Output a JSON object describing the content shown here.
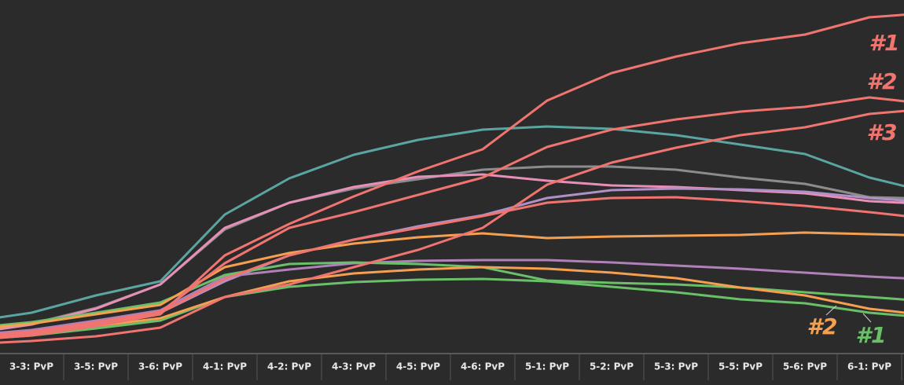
{
  "chart_data": {
    "type": "line",
    "categories": [
      null,
      "3-3: PvP",
      "3-5: PvP",
      "3-6: PvP",
      "4-1: PvP",
      "4-2: PvP",
      "4-3: PvP",
      "4-5: PvP",
      "4-6: PvP",
      "5-1: PvP",
      "5-2: PvP",
      "5-3: PvP",
      "5-5: PvP",
      "5-6: PvP",
      "6-1: PvP",
      null
    ],
    "ylim": [
      0,
      450
    ],
    "series": [
      {
        "color": "#8c8c8c",
        "values": [
          26,
          38,
          58,
          88,
          158,
          192,
          210,
          222,
          234,
          238,
          238,
          234,
          224,
          216,
          199,
          197
        ]
      },
      {
        "color": "#e88fb8",
        "values": [
          25,
          37,
          57,
          88,
          160,
          192,
          212,
          225,
          228,
          220,
          214,
          212,
          208,
          204,
          194,
          190
        ]
      },
      {
        "color": "#b090c8",
        "values": [
          18,
          26,
          38,
          52,
          92,
          125,
          145,
          162,
          176,
          198,
          208,
          210,
          209,
          206,
          198,
          192
        ]
      },
      {
        "color": "#b080b8",
        "values": [
          23,
          30,
          42,
          55,
          98,
          107,
          115,
          118,
          119,
          119,
          116,
          112,
          108,
          103,
          98,
          94
        ]
      },
      {
        "color": "#6abf69",
        "values": [
          32,
          40,
          52,
          65,
          100,
          114,
          116,
          114,
          110,
          93,
          90,
          88,
          84,
          78,
          72,
          66
        ]
      },
      {
        "color": "#6abf69",
        "values": [
          17,
          23,
          32,
          42,
          72,
          85,
          91,
          94,
          95,
          92,
          85,
          78,
          69,
          64,
          52,
          45
        ]
      },
      {
        "color": "#f5a050",
        "values": [
          30,
          38,
          50,
          62,
          110,
          128,
          140,
          148,
          153,
          147,
          149,
          150,
          151,
          154,
          152,
          150
        ]
      },
      {
        "color": "#f5a050",
        "values": [
          20,
          26,
          35,
          45,
          72,
          92,
          102,
          107,
          110,
          108,
          103,
          96,
          84,
          74,
          57,
          48
        ]
      },
      {
        "color": "#5aa5a0",
        "values": [
          40,
          52,
          74,
          92,
          177,
          223,
          253,
          272,
          285,
          289,
          286,
          278,
          266,
          254,
          224,
          204
        ]
      },
      {
        "color": "#f07470",
        "values": [
          20,
          25,
          37,
          52,
          95,
          125,
          145,
          160,
          175,
          192,
          198,
          199,
          194,
          188,
          180,
          171
        ]
      },
      {
        "color": "#f07470",
        "values": [
          12,
          16,
          22,
          33,
          72,
          88,
          110,
          132,
          160,
          215,
          243,
          262,
          278,
          288,
          305,
          312
        ]
      },
      {
        "color": "#f07470",
        "values": [
          22,
          28,
          40,
          53,
          115,
          160,
          180,
          202,
          224,
          263,
          285,
          298,
          308,
          314,
          326,
          317
        ]
      },
      {
        "color": "#f07470",
        "values": [
          17,
          23,
          35,
          50,
          125,
          165,
          200,
          232,
          260,
          322,
          357,
          378,
          395,
          406,
          428,
          434
        ]
      }
    ],
    "annotations": [
      {
        "text": "#1",
        "color": "#f07470"
      },
      {
        "text": "#2",
        "color": "#f07470"
      },
      {
        "text": "#3",
        "color": "#f07470"
      },
      {
        "text": "#2",
        "color": "#f5a050"
      },
      {
        "text": "#1",
        "color": "#6abf69"
      }
    ]
  }
}
